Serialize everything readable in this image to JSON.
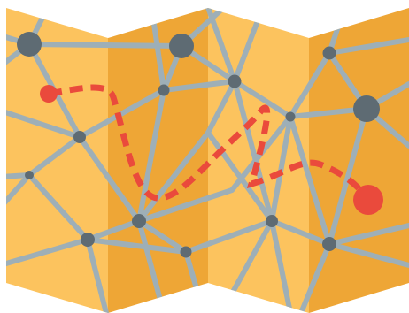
{
  "illustration": {
    "icon": "folded-map-icon",
    "colors": {
      "panel_light": "#FCC35E",
      "panel_dark": "#EEA636",
      "road": "#9EAFB7",
      "node": "#5E6B73",
      "route": "#EA4A3C",
      "background": "#FFFFFF"
    }
  }
}
